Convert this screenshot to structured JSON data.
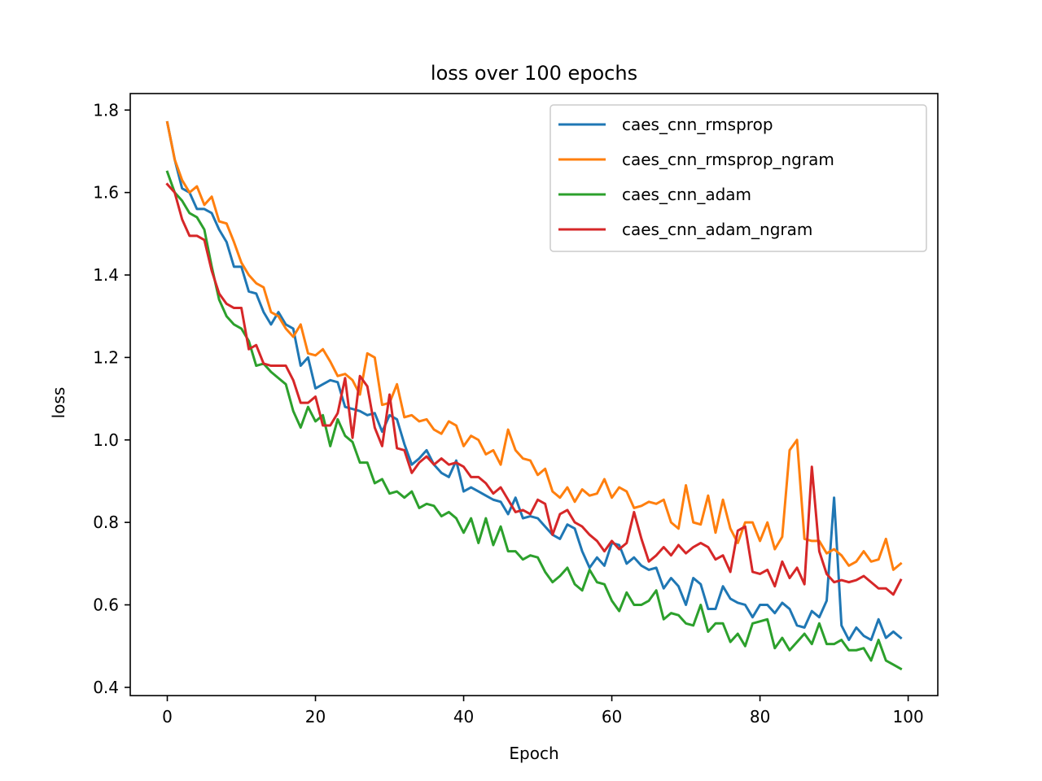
{
  "chart_data": {
    "type": "line",
    "title": "loss over 100 epochs",
    "xlabel": "Epoch",
    "ylabel": "loss",
    "xlim": [
      -5,
      104
    ],
    "ylim": [
      0.38,
      1.84
    ],
    "xticks": [
      0,
      20,
      40,
      60,
      80,
      100
    ],
    "yticks": [
      0.4,
      0.6,
      0.8,
      1.0,
      1.2,
      1.4,
      1.6,
      1.8
    ],
    "xtick_labels": [
      "0",
      "20",
      "40",
      "60",
      "80",
      "100"
    ],
    "ytick_labels": [
      "0.4",
      "0.6",
      "0.8",
      "1.0",
      "1.2",
      "1.4",
      "1.6",
      "1.8"
    ],
    "grid": false,
    "legend_position": "top-right",
    "series": [
      {
        "name": "caes_cnn_rmsprop",
        "color": "#1f77b4",
        "values": [
          1.77,
          1.68,
          1.61,
          1.6,
          1.56,
          1.56,
          1.55,
          1.51,
          1.48,
          1.42,
          1.42,
          1.36,
          1.355,
          1.31,
          1.28,
          1.31,
          1.28,
          1.27,
          1.18,
          1.2,
          1.125,
          1.135,
          1.145,
          1.14,
          1.08,
          1.075,
          1.07,
          1.06,
          1.065,
          1.02,
          1.06,
          1.05,
          0.99,
          0.94,
          0.955,
          0.975,
          0.94,
          0.92,
          0.91,
          0.95,
          0.875,
          0.885,
          0.875,
          0.865,
          0.855,
          0.85,
          0.82,
          0.86,
          0.81,
          0.815,
          0.81,
          0.79,
          0.77,
          0.76,
          0.795,
          0.785,
          0.73,
          0.69,
          0.715,
          0.695,
          0.75,
          0.745,
          0.7,
          0.715,
          0.695,
          0.685,
          0.69,
          0.64,
          0.665,
          0.645,
          0.6,
          0.665,
          0.65,
          0.59,
          0.59,
          0.645,
          0.615,
          0.605,
          0.6,
          0.57,
          0.6,
          0.6,
          0.58,
          0.605,
          0.59,
          0.55,
          0.545,
          0.585,
          0.57,
          0.61,
          0.86,
          0.55,
          0.515,
          0.545,
          0.525,
          0.515,
          0.565,
          0.52,
          0.535,
          0.52
        ]
      },
      {
        "name": "caes_cnn_rmsprop_ngram",
        "color": "#ff7f0e",
        "values": [
          1.77,
          1.68,
          1.63,
          1.6,
          1.615,
          1.57,
          1.59,
          1.53,
          1.525,
          1.48,
          1.43,
          1.4,
          1.38,
          1.37,
          1.31,
          1.3,
          1.27,
          1.25,
          1.28,
          1.21,
          1.205,
          1.22,
          1.19,
          1.155,
          1.16,
          1.145,
          1.11,
          1.21,
          1.2,
          1.085,
          1.09,
          1.135,
          1.055,
          1.06,
          1.045,
          1.05,
          1.025,
          1.015,
          1.045,
          1.035,
          0.985,
          1.01,
          1.0,
          0.965,
          0.975,
          0.94,
          1.025,
          0.975,
          0.955,
          0.95,
          0.915,
          0.93,
          0.875,
          0.86,
          0.885,
          0.85,
          0.88,
          0.865,
          0.87,
          0.905,
          0.86,
          0.885,
          0.875,
          0.835,
          0.84,
          0.85,
          0.845,
          0.855,
          0.8,
          0.785,
          0.89,
          0.8,
          0.795,
          0.865,
          0.775,
          0.855,
          0.785,
          0.75,
          0.8,
          0.8,
          0.755,
          0.8,
          0.735,
          0.765,
          0.975,
          1.0,
          0.76,
          0.755,
          0.755,
          0.725,
          0.735,
          0.72,
          0.695,
          0.705,
          0.73,
          0.705,
          0.71,
          0.76,
          0.685,
          0.7
        ]
      },
      {
        "name": "caes_cnn_adam",
        "color": "#2ca02c",
        "values": [
          1.65,
          1.6,
          1.58,
          1.55,
          1.54,
          1.51,
          1.42,
          1.34,
          1.3,
          1.28,
          1.27,
          1.24,
          1.18,
          1.185,
          1.165,
          1.15,
          1.135,
          1.07,
          1.03,
          1.08,
          1.045,
          1.06,
          0.985,
          1.05,
          1.01,
          0.995,
          0.945,
          0.945,
          0.895,
          0.905,
          0.87,
          0.875,
          0.86,
          0.875,
          0.835,
          0.845,
          0.84,
          0.815,
          0.825,
          0.81,
          0.775,
          0.81,
          0.75,
          0.81,
          0.745,
          0.79,
          0.73,
          0.73,
          0.71,
          0.72,
          0.715,
          0.68,
          0.655,
          0.67,
          0.69,
          0.65,
          0.635,
          0.685,
          0.655,
          0.65,
          0.61,
          0.585,
          0.63,
          0.6,
          0.6,
          0.61,
          0.635,
          0.565,
          0.58,
          0.575,
          0.555,
          0.55,
          0.6,
          0.535,
          0.555,
          0.555,
          0.51,
          0.53,
          0.5,
          0.555,
          0.56,
          0.565,
          0.495,
          0.52,
          0.49,
          0.51,
          0.53,
          0.505,
          0.555,
          0.505,
          0.505,
          0.515,
          0.49,
          0.49,
          0.495,
          0.465,
          0.515,
          0.465,
          0.455,
          0.445
        ]
      },
      {
        "name": "caes_cnn_adam_ngram",
        "color": "#d62728",
        "values": [
          1.62,
          1.6,
          1.535,
          1.495,
          1.495,
          1.485,
          1.41,
          1.355,
          1.33,
          1.32,
          1.32,
          1.22,
          1.23,
          1.185,
          1.18,
          1.18,
          1.18,
          1.145,
          1.09,
          1.09,
          1.105,
          1.035,
          1.035,
          1.065,
          1.15,
          1.005,
          1.155,
          1.13,
          1.03,
          0.985,
          1.11,
          0.98,
          0.975,
          0.92,
          0.945,
          0.96,
          0.94,
          0.955,
          0.94,
          0.945,
          0.935,
          0.91,
          0.91,
          0.895,
          0.87,
          0.885,
          0.855,
          0.825,
          0.83,
          0.82,
          0.855,
          0.845,
          0.77,
          0.82,
          0.83,
          0.8,
          0.79,
          0.77,
          0.755,
          0.73,
          0.755,
          0.735,
          0.75,
          0.825,
          0.76,
          0.705,
          0.72,
          0.74,
          0.72,
          0.745,
          0.725,
          0.74,
          0.75,
          0.74,
          0.71,
          0.72,
          0.68,
          0.78,
          0.79,
          0.68,
          0.675,
          0.685,
          0.645,
          0.705,
          0.665,
          0.69,
          0.65,
          0.935,
          0.73,
          0.675,
          0.655,
          0.66,
          0.655,
          0.66,
          0.67,
          0.655,
          0.64,
          0.64,
          0.625,
          0.66
        ]
      }
    ]
  }
}
